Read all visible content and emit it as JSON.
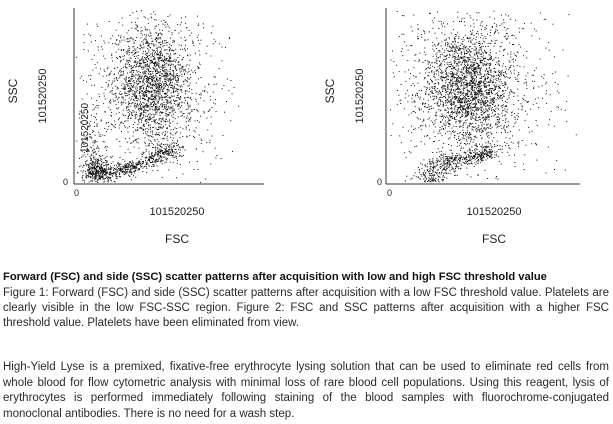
{
  "figure": {
    "panels": [
      {
        "y_axis_label": "SSC",
        "y_axis_tick_text": "101520250",
        "x_axis_tick_text": "101520250",
        "x_axis_label": "FSC",
        "y_zero": "0",
        "x_zero": "0",
        "inner_ticks": "101520250",
        "platelets_visible": true
      },
      {
        "y_axis_label": "SSC",
        "y_axis_tick_text": "101520250",
        "x_axis_tick_text": "101520250",
        "x_axis_label": "FSC",
        "y_zero": "0",
        "x_zero": "0",
        "inner_ticks": "",
        "platelets_visible": false
      }
    ]
  },
  "caption": {
    "title": "Forward (FSC) and side (SSC) scatter patterns after acquisition with low and high FSC threshold value",
    "body": "Figure 1: Forward (FSC) and side (SSC) scatter patterns after acquisition with a low FSC threshold value. Platelets are clearly visible in the low FSC-SSC region. Figure 2: FSC and SSC patterns after acquisition with a higher FSC threshold value. Platelets have been eliminated from view."
  },
  "description": "High-Yield Lyse is a premixed, fixative-free erythrocyte lysing solution that can be used to eliminate red cells from whole blood for flow cytometric analysis with minimal loss of rare blood cell populations. Using this reagent, lysis of erythrocytes is performed immediately following staining of the blood samples with fluorochrome-conjugated monoclonal antibodies. There is no need for a wash step.",
  "colors": {
    "dots": "#111111",
    "axis": "#333333",
    "text": "#2a2a2a"
  }
}
